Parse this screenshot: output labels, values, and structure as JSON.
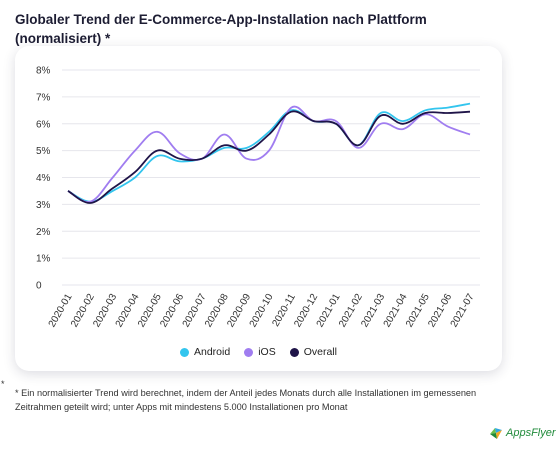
{
  "title": "Globaler Trend der E-Commerce-App-Installation nach Plattform (normalisiert) *",
  "footnote_marker": "*",
  "footnote": "* Ein normalisierter Trend wird berechnet, indem der Anteil jedes Monats durch alle Installationen im gemessenen Zeitrahmen geteilt wird; unter Apps mit mindestens 5.000 Installationen pro Monat",
  "logo": {
    "text": "AppsFlyer",
    "icon": "appsflyer-logo-icon"
  },
  "colors": {
    "android": "#33c5ee",
    "ios": "#a07df0",
    "overall": "#1f1448"
  },
  "chart_data": {
    "type": "line",
    "title": "Globaler Trend der E-Commerce-App-Installation nach Plattform (normalisiert) *",
    "xlabel": "",
    "ylabel": "",
    "grid": true,
    "legend_position": "bottom-center",
    "ylim": [
      0,
      8
    ],
    "y_ticks": [
      "0",
      "1%",
      "2%",
      "3%",
      "4%",
      "5%",
      "6%",
      "7%",
      "8%"
    ],
    "y_tick_values": [
      0,
      1,
      2,
      3,
      4,
      5,
      6,
      7,
      8
    ],
    "categories": [
      "2020-01",
      "2020-02",
      "2020-03",
      "2020-04",
      "2020-05",
      "2020-06",
      "2020-07",
      "2020-08",
      "2020-09",
      "2020-10",
      "2020-11",
      "2020-12",
      "2021-01",
      "2021-02",
      "2021-03",
      "2021-04",
      "2021-05",
      "2021-06",
      "2021-07"
    ],
    "series": [
      {
        "name": "Android",
        "color": "#33c5ee",
        "values": [
          3.5,
          3.1,
          3.5,
          4.0,
          4.8,
          4.6,
          4.7,
          5.1,
          5.1,
          5.7,
          6.5,
          6.1,
          6.0,
          5.2,
          6.4,
          6.1,
          6.5,
          6.6,
          6.75
        ]
      },
      {
        "name": "iOS",
        "color": "#a07df0",
        "values": [
          3.5,
          3.1,
          4.0,
          5.0,
          5.7,
          4.9,
          4.7,
          5.6,
          4.7,
          5.0,
          6.6,
          6.1,
          6.1,
          5.1,
          6.0,
          5.8,
          6.35,
          5.9,
          5.6
        ]
      },
      {
        "name": "Overall",
        "color": "#1f1448",
        "values": [
          3.5,
          3.05,
          3.6,
          4.2,
          5.0,
          4.7,
          4.7,
          5.2,
          5.0,
          5.6,
          6.45,
          6.1,
          6.0,
          5.2,
          6.3,
          6.0,
          6.4,
          6.4,
          6.45
        ]
      }
    ]
  }
}
